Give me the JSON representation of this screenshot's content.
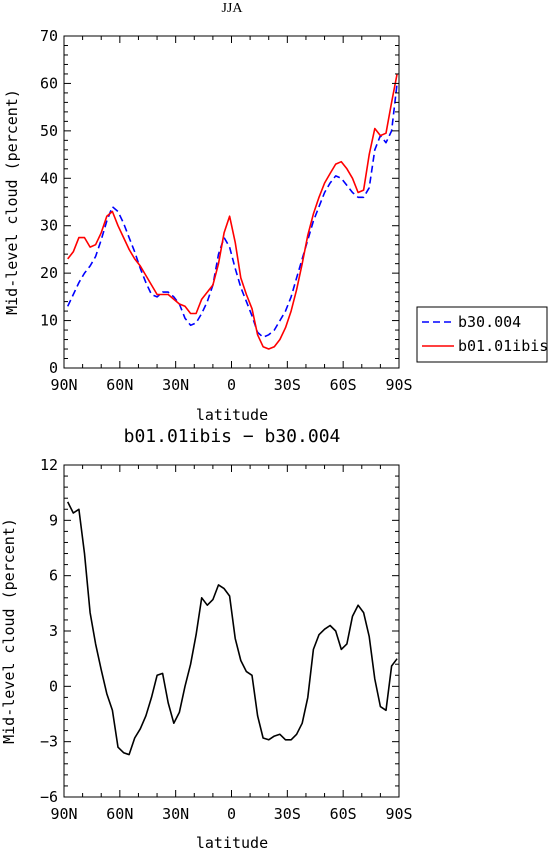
{
  "chart_data": [
    {
      "type": "line",
      "title": "JJA",
      "xlabel": "latitude",
      "ylabel": "Mid-level cloud (percent)",
      "xlim": [
        90,
        -90
      ],
      "ylim": [
        0,
        70
      ],
      "x_ticks": [
        90,
        60,
        30,
        0,
        -30,
        -60,
        -90
      ],
      "x_tick_labels": [
        "90N",
        "60N",
        "30N",
        "0",
        "30S",
        "60S",
        "90S"
      ],
      "y_ticks": [
        0,
        10,
        20,
        30,
        40,
        50,
        60,
        70
      ],
      "y_tick_labels": [
        "0",
        "10",
        "20",
        "30",
        "40",
        "50",
        "60",
        "70"
      ],
      "legend_position": "right",
      "series": [
        {
          "name": "b30.004",
          "color": "#0000ff",
          "dash": "dashed",
          "x": [
            88,
            85,
            82,
            79,
            76,
            73,
            70,
            67,
            64,
            61,
            58,
            55,
            52,
            49,
            46,
            43,
            40,
            37,
            34,
            31,
            28,
            25,
            22,
            19,
            16,
            13,
            10,
            7,
            4,
            1,
            -2,
            -5,
            -8,
            -11,
            -14,
            -17,
            -20,
            -23,
            -26,
            -29,
            -32,
            -35,
            -38,
            -41,
            -44,
            -47,
            -50,
            -53,
            -56,
            -59,
            -62,
            -65,
            -68,
            -71,
            -74,
            -77,
            -80,
            -83,
            -86,
            -89
          ],
          "y": [
            13.0,
            15.5,
            18.0,
            20.0,
            21.5,
            23.5,
            27.0,
            31.0,
            34.0,
            33.0,
            30.5,
            27.5,
            24.5,
            21.0,
            18.0,
            15.5,
            15.0,
            16.0,
            16.0,
            15.0,
            13.5,
            10.5,
            9.0,
            9.5,
            11.5,
            14.0,
            17.5,
            24.0,
            27.5,
            25.5,
            21.0,
            17.0,
            14.0,
            11.0,
            7.5,
            6.5,
            7.0,
            8.0,
            10.0,
            12.0,
            15.0,
            19.0,
            23.0,
            27.0,
            31.0,
            34.0,
            37.0,
            39.0,
            40.5,
            40.0,
            38.5,
            37.0,
            36.0,
            36.0,
            38.0,
            46.0,
            49.0,
            47.5,
            50.0,
            60.0
          ]
        },
        {
          "name": "b01.01ibis",
          "color": "#ff0000",
          "dash": "solid",
          "x": [
            88,
            85,
            82,
            79,
            76,
            73,
            70,
            67,
            64,
            61,
            58,
            55,
            52,
            49,
            46,
            43,
            40,
            37,
            34,
            31,
            28,
            25,
            22,
            19,
            16,
            13,
            10,
            7,
            4,
            1,
            -2,
            -5,
            -8,
            -11,
            -14,
            -17,
            -20,
            -23,
            -26,
            -29,
            -32,
            -35,
            -38,
            -41,
            -44,
            -47,
            -50,
            -53,
            -56,
            -59,
            -62,
            -65,
            -68,
            -71,
            -74,
            -77,
            -80,
            -83,
            -86,
            -89
          ],
          "y": [
            23.0,
            24.5,
            27.5,
            27.5,
            25.5,
            26.0,
            28.5,
            32.0,
            33.0,
            30.0,
            27.5,
            25.0,
            23.0,
            21.5,
            19.5,
            17.5,
            15.5,
            15.5,
            15.5,
            14.5,
            13.5,
            13.0,
            11.5,
            11.5,
            14.5,
            16.0,
            17.5,
            22.0,
            28.5,
            32.0,
            26.5,
            19.0,
            15.5,
            12.5,
            7.0,
            4.5,
            4.0,
            4.5,
            6.0,
            8.5,
            12.0,
            16.5,
            22.0,
            28.0,
            32.5,
            36.0,
            39.0,
            41.0,
            43.0,
            43.5,
            42.0,
            40.0,
            37.0,
            37.5,
            45.0,
            50.5,
            49.0,
            49.5,
            56.0,
            62.0
          ]
        }
      ]
    },
    {
      "type": "line",
      "title": "b01.01ibis − b30.004",
      "xlabel": "latitude",
      "ylabel": "Mid-level cloud (percent)",
      "xlim": [
        90,
        -90
      ],
      "ylim": [
        -6,
        12
      ],
      "x_ticks": [
        90,
        60,
        30,
        0,
        -30,
        -60,
        -90
      ],
      "x_tick_labels": [
        "90N",
        "60N",
        "30N",
        "0",
        "30S",
        "60S",
        "90S"
      ],
      "y_ticks": [
        -6,
        -3,
        0,
        3,
        6,
        9,
        12
      ],
      "y_tick_labels": [
        "−6",
        "−3",
        "0",
        "3",
        "6",
        "9",
        "12"
      ],
      "series": [
        {
          "color": "#000000",
          "dash": "solid",
          "x": [
            88,
            85,
            82,
            79,
            76,
            73,
            70,
            67,
            64,
            61,
            58,
            55,
            52,
            49,
            46,
            43,
            40,
            37,
            34,
            31,
            28,
            25,
            22,
            19,
            16,
            13,
            10,
            7,
            4,
            1,
            -2,
            -5,
            -8,
            -11,
            -14,
            -17,
            -20,
            -23,
            -26,
            -29,
            -32,
            -35,
            -38,
            -41,
            -44,
            -47,
            -50,
            -53,
            -56,
            -59,
            -62,
            -65,
            -68,
            -71,
            -74,
            -77,
            -80,
            -83,
            -86,
            -89
          ],
          "y": [
            10.0,
            9.4,
            9.6,
            7.2,
            4.0,
            2.3,
            0.9,
            -0.4,
            -1.3,
            -3.3,
            -3.6,
            -3.7,
            -2.8,
            -2.3,
            -1.6,
            -0.6,
            0.6,
            0.7,
            -0.9,
            -2.0,
            -1.4,
            0.0,
            1.2,
            2.8,
            4.8,
            4.4,
            4.7,
            5.5,
            5.3,
            4.9,
            2.6,
            1.4,
            0.8,
            0.6,
            -1.6,
            -2.8,
            -2.9,
            -2.7,
            -2.6,
            -2.9,
            -2.9,
            -2.6,
            -2.0,
            -0.6,
            2.0,
            2.8,
            3.1,
            3.3,
            3.0,
            2.0,
            2.3,
            3.8,
            4.4,
            4.0,
            2.7,
            0.4,
            -1.1,
            -1.3,
            1.1,
            1.5
          ]
        }
      ]
    }
  ]
}
